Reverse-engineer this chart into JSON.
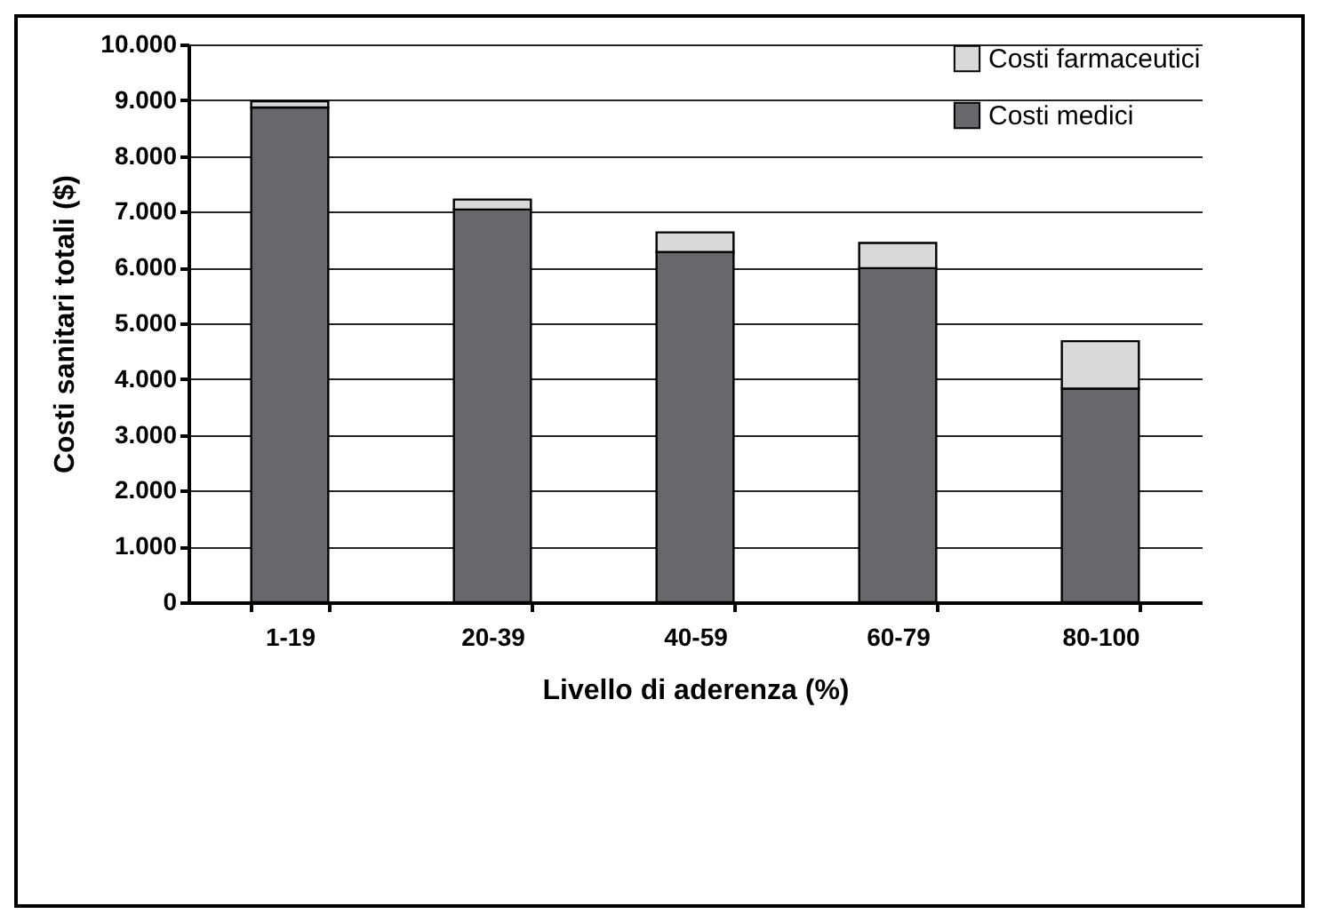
{
  "chart_data": {
    "type": "bar",
    "stacked": true,
    "xlabel": "Livello di aderenza (%)",
    "ylabel": "Costi sanitari totali ($)",
    "categories": [
      "1-19",
      "20-39",
      "40-59",
      "60-79",
      "80-100"
    ],
    "series": [
      {
        "name": "Costi medici",
        "color": "#68676b",
        "values": [
          8870,
          7040,
          6280,
          5990,
          3830
        ]
      },
      {
        "name": "Costi farmaceutici",
        "color": "#d9d9db",
        "values": [
          110,
          180,
          350,
          450,
          850
        ]
      }
    ],
    "ylim": [
      0,
      10000
    ],
    "yticks": [
      {
        "value": 0,
        "label": "0"
      },
      {
        "value": 1000,
        "label": "1.000"
      },
      {
        "value": 2000,
        "label": "2.000"
      },
      {
        "value": 3000,
        "label": "3.000"
      },
      {
        "value": 4000,
        "label": "4.000"
      },
      {
        "value": 5000,
        "label": "5.000"
      },
      {
        "value": 6000,
        "label": "6.000"
      },
      {
        "value": 7000,
        "label": "7.000"
      },
      {
        "value": 8000,
        "label": "8.000"
      },
      {
        "value": 9000,
        "label": "9.000"
      },
      {
        "value": 10000,
        "label": "10.000"
      }
    ],
    "grid": "y",
    "legend": "top right"
  }
}
